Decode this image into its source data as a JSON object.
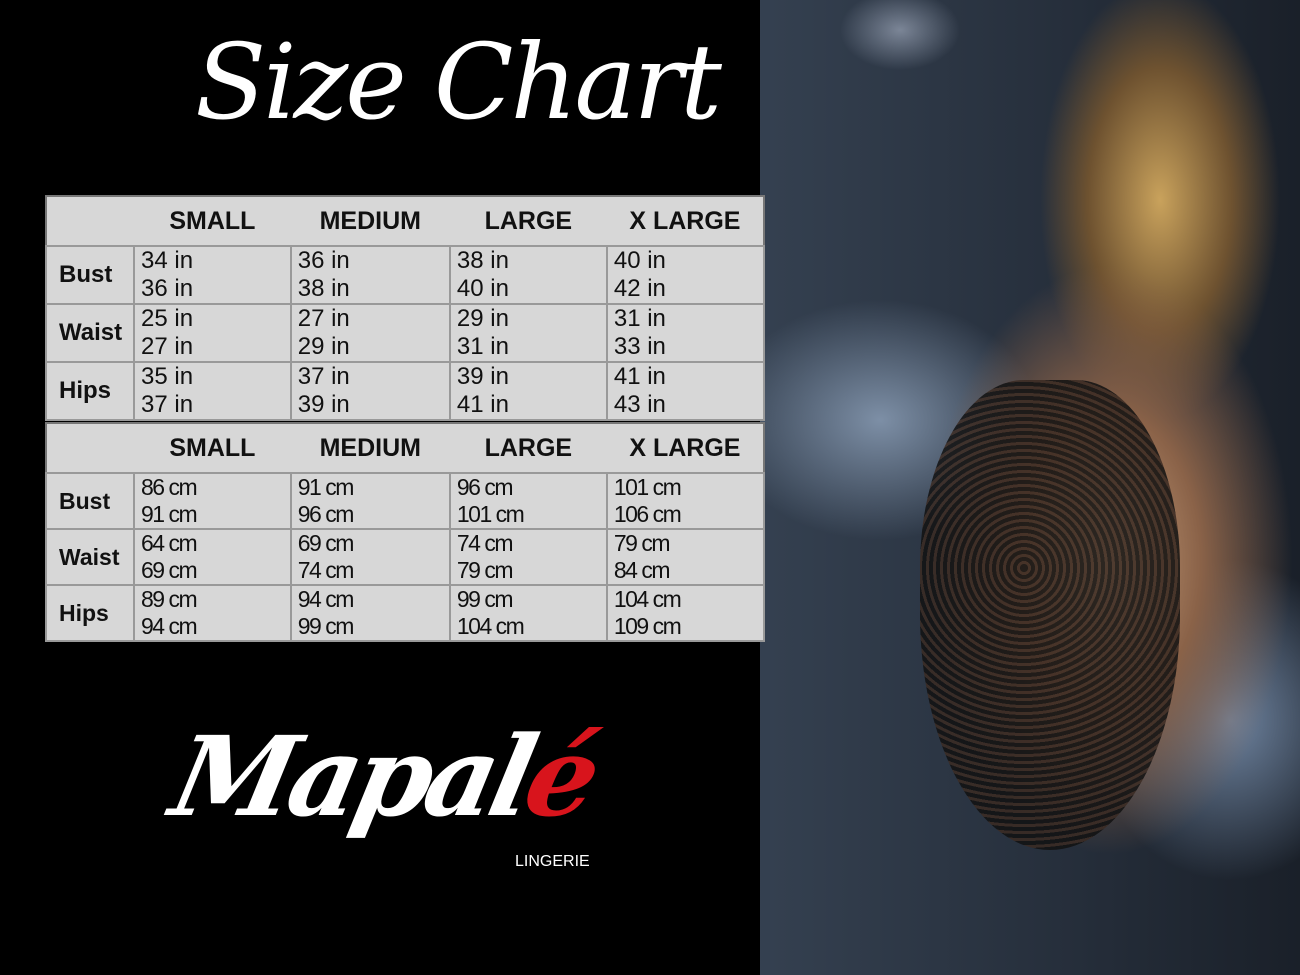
{
  "title": "Size Chart",
  "accent_color": "#d8141c",
  "sizes": [
    "SMALL",
    "MEDIUM",
    "LARGE",
    "X LARGE"
  ],
  "inches": {
    "rows": [
      {
        "label": "Bust",
        "values": [
          "34 in",
          "36 in",
          "36 in",
          "38 in",
          "38 in",
          "40 in",
          "40 in",
          "42 in"
        ]
      },
      {
        "label": "Waist",
        "values": [
          "25 in",
          "27 in",
          "27 in",
          "29 in",
          "29 in",
          "31 in",
          "31 in",
          "33 in"
        ]
      },
      {
        "label": "Hips",
        "values": [
          "35 in",
          "37 in",
          "37 in",
          "39 in",
          "39 in",
          "41 in",
          "41 in",
          "43 in"
        ]
      }
    ]
  },
  "cm": {
    "rows": [
      {
        "label": "Bust",
        "values": [
          "86 cm",
          "91 cm",
          "91 cm",
          "96 cm",
          "96 cm",
          "101 cm",
          "101 cm",
          "106 cm"
        ]
      },
      {
        "label": "Waist",
        "values": [
          "64 cm",
          "69 cm",
          "69 cm",
          "74 cm",
          "74 cm",
          "79 cm",
          "79 cm",
          "84 cm"
        ]
      },
      {
        "label": "Hips",
        "values": [
          "89 cm",
          "94 cm",
          "94 cm",
          "99 cm",
          "99 cm",
          "104 cm",
          "104 cm",
          "109 cm"
        ]
      }
    ]
  },
  "logo": {
    "main": "Mapal",
    "accent": "é",
    "sub": "LINGERIE"
  }
}
